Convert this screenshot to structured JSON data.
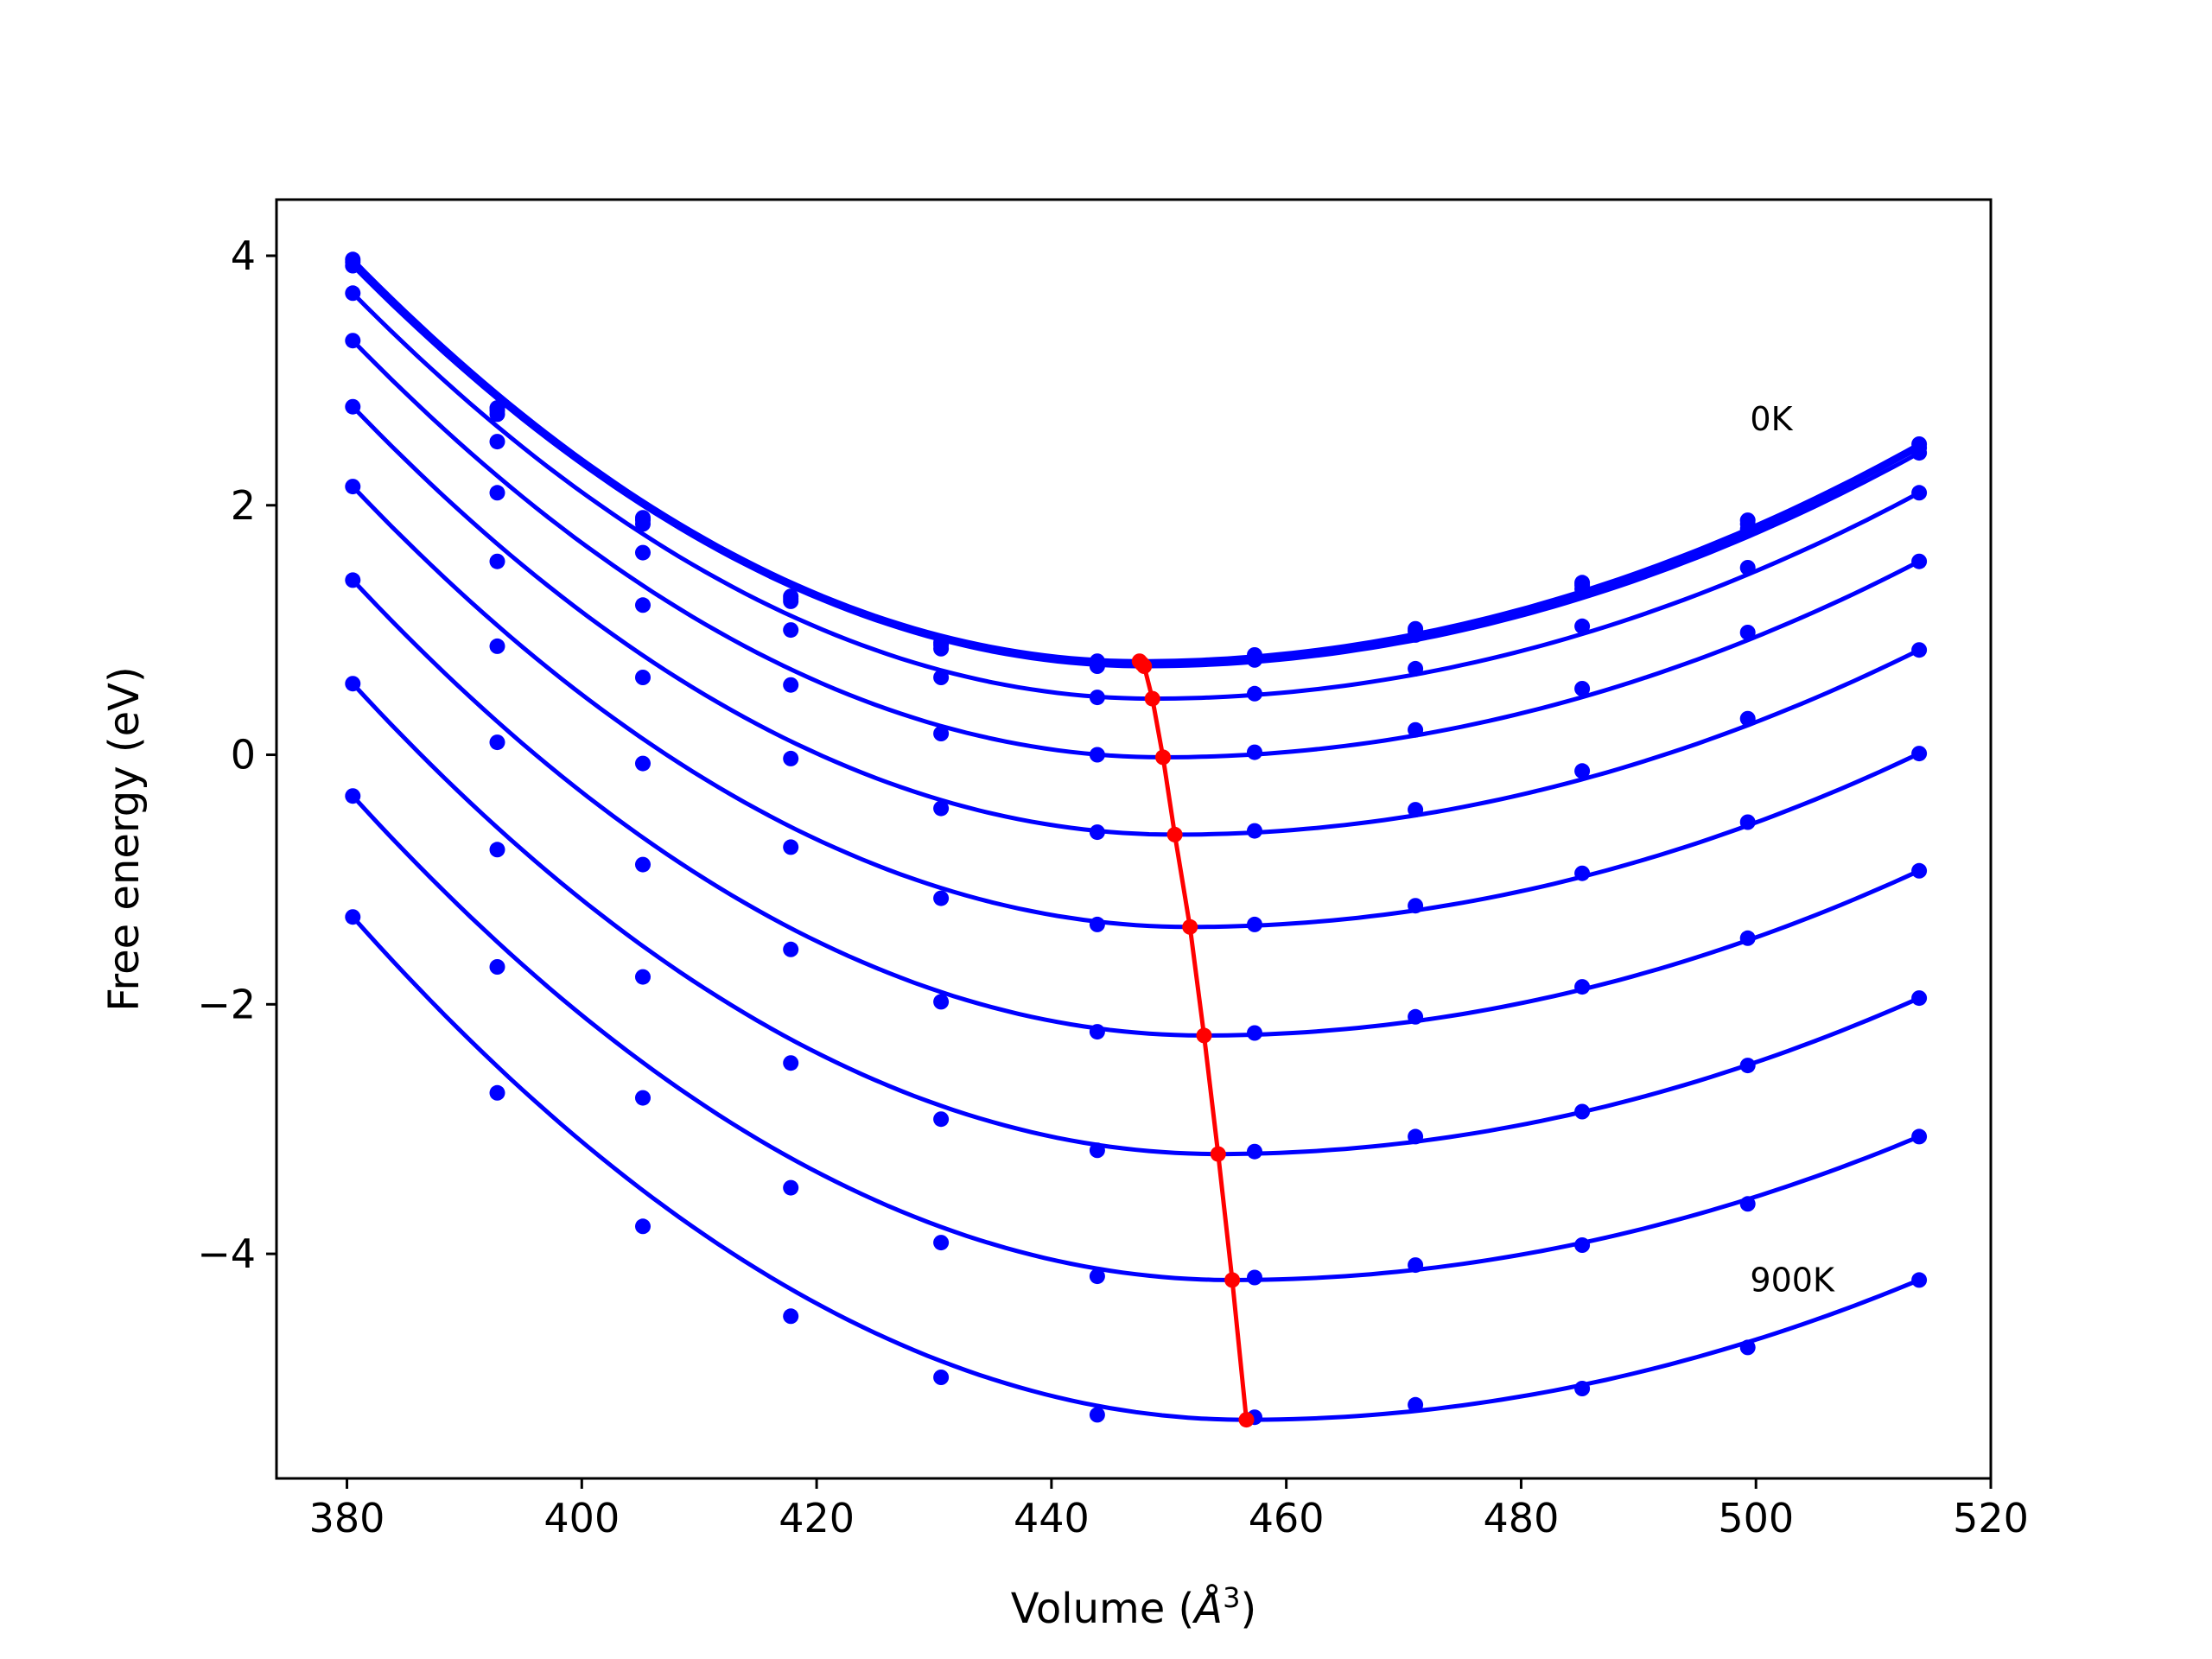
{
  "chart_data": {
    "type": "line",
    "title": "",
    "xlabel": "Volume",
    "xlabel_unit_base": "Å",
    "xlabel_unit_exp": "3",
    "ylabel": "Free energy (eV)",
    "xlim": [
      374,
      520
    ],
    "ylim": [
      -5.8,
      4.45
    ],
    "xticks": [
      380,
      400,
      420,
      440,
      460,
      480,
      500,
      520
    ],
    "xtick_labels": [
      "380",
      "400",
      "420",
      "440",
      "460",
      "480",
      "500",
      "520"
    ],
    "yticks": [
      -4,
      -2,
      0,
      2,
      4
    ],
    "ytick_labels": [
      "−4",
      "−2",
      "0",
      "2",
      "4"
    ],
    "grid": false,
    "legend": "none",
    "annotations": [
      {
        "text": "0K",
        "x": 499.5,
        "y": 2.6
      },
      {
        "text": "900K",
        "x": 499.5,
        "y": -4.3
      }
    ],
    "x": [
      380.5,
      392.8,
      405.2,
      417.8,
      430.6,
      443.9,
      457.3,
      471.0,
      485.2,
      499.3,
      513.9
    ],
    "series": [
      {
        "values": [
          3.97,
          2.78,
          1.9,
          1.27,
          0.9,
          0.75,
          0.8,
          1.01,
          1.38,
          1.88,
          2.49
        ],
        "min": [
          447.5,
          0.75
        ]
      },
      {
        "values": [
          3.95,
          2.76,
          1.88,
          1.25,
          0.88,
          0.73,
          0.78,
          0.99,
          1.36,
          1.85,
          2.46
        ],
        "min": [
          447.7,
          0.73
        ]
      },
      {
        "values": [
          3.92,
          2.73,
          1.85,
          1.23,
          0.85,
          0.71,
          0.76,
          0.96,
          1.33,
          1.81,
          2.42
        ],
        "min": [
          447.9,
          0.71
        ]
      },
      {
        "values": [
          3.7,
          2.51,
          1.62,
          1.0,
          0.62,
          0.46,
          0.49,
          0.69,
          1.03,
          1.5,
          2.1
        ],
        "min": [
          448.6,
          0.45
        ]
      },
      {
        "values": [
          3.32,
          2.1,
          1.2,
          0.56,
          0.17,
          0.0,
          0.02,
          0.2,
          0.53,
          0.98,
          1.55
        ],
        "min": [
          449.5,
          -0.02
        ]
      },
      {
        "values": [
          2.79,
          1.55,
          0.62,
          -0.03,
          -0.43,
          -0.62,
          -0.61,
          -0.44,
          -0.13,
          0.29,
          0.84
        ],
        "min": [
          450.5,
          -0.64
        ]
      },
      {
        "values": [
          2.15,
          0.87,
          -0.07,
          -0.74,
          -1.15,
          -1.36,
          -1.36,
          -1.21,
          -0.95,
          -0.54,
          0.01
        ],
        "min": [
          451.8,
          -1.38
        ]
      },
      {
        "values": [
          1.4,
          0.1,
          -0.88,
          -1.56,
          -1.98,
          -2.22,
          -2.23,
          -2.1,
          -1.86,
          -1.47,
          -0.93
        ],
        "min": [
          453.0,
          -2.25
        ]
      },
      {
        "values": [
          0.57,
          -0.76,
          -1.78,
          -2.47,
          -2.92,
          -3.17,
          -3.18,
          -3.06,
          -2.86,
          -2.49,
          -1.95
        ],
        "min": [
          454.2,
          -3.2
        ]
      },
      {
        "values": [
          -0.33,
          -1.7,
          -2.75,
          -3.47,
          -3.91,
          -4.18,
          -4.19,
          -4.09,
          -3.93,
          -3.6,
          -3.06
        ],
        "min": [
          455.4,
          -4.21
        ]
      },
      {
        "values": [
          -1.3,
          -2.71,
          -3.78,
          -4.5,
          -4.99,
          -5.29,
          -5.31,
          -5.21,
          -5.08,
          -4.75,
          -4.21
        ],
        "min": [
          456.6,
          -5.33
        ]
      }
    ],
    "minima_line": {
      "x": [
        447.5,
        447.7,
        447.9,
        448.6,
        449.5,
        450.5,
        451.8,
        453.0,
        454.2,
        455.4,
        456.6
      ],
      "y": [
        0.75,
        0.73,
        0.71,
        0.45,
        -0.02,
        -0.64,
        -1.38,
        -2.25,
        -3.2,
        -4.21,
        -5.33
      ]
    },
    "colors": {
      "series": "#0000ff",
      "minima": "#ff0000",
      "axes": "#000000"
    }
  }
}
